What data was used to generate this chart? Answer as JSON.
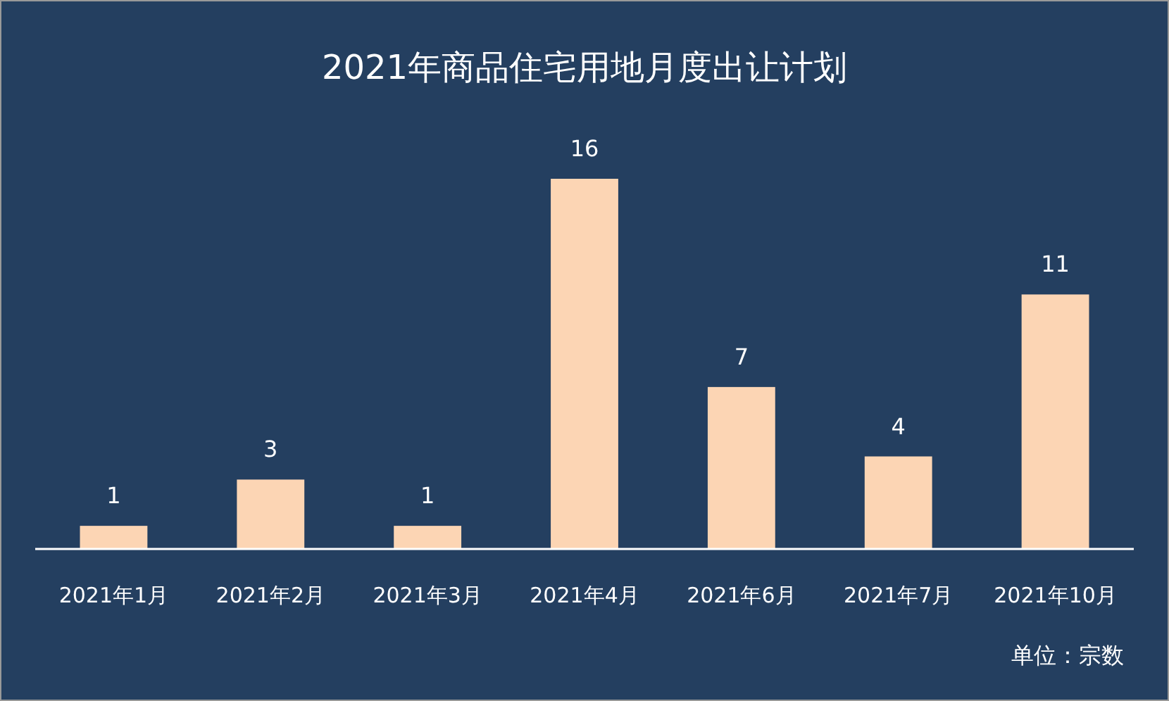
{
  "chart_data": {
    "type": "bar",
    "title": "2021年商品住宅用地月度出让计划",
    "categories": [
      "2021年1月",
      "2021年2月",
      "2021年3月",
      "2021年4月",
      "2021年6月",
      "2021年7月",
      "2021年10月"
    ],
    "values": [
      1,
      3,
      1,
      16,
      7,
      4,
      11
    ],
    "color": "#fcd5b4",
    "data_labels": true,
    "annotations": [
      "单位：宗数"
    ]
  }
}
